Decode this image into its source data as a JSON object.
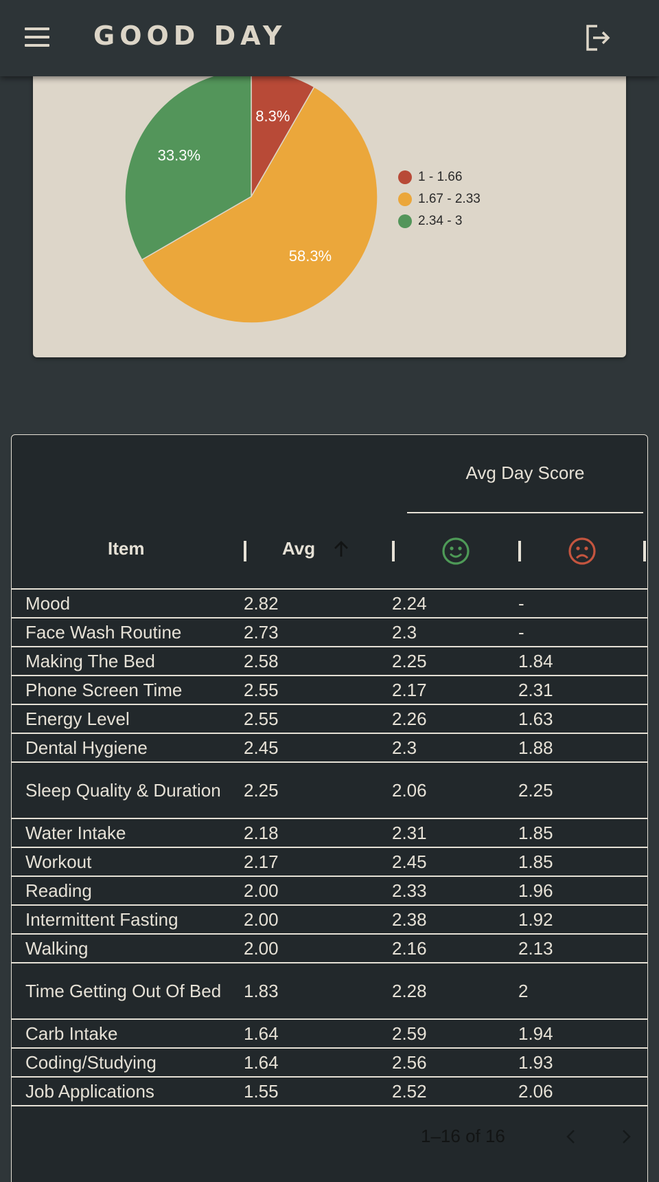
{
  "header": {
    "title": "GOOD DAY",
    "menu_icon": "menu-icon",
    "logout_icon": "logout-icon"
  },
  "chart_data": {
    "type": "pie",
    "slices": [
      {
        "label": "1 - 1.66",
        "value": 8.3,
        "display": "8.3%",
        "color": "#b84a37"
      },
      {
        "label": "1.67 - 2.33",
        "value": 58.3,
        "display": "58.3%",
        "color": "#eba73b"
      },
      {
        "label": "2.34 - 3",
        "value": 33.3,
        "display": "33.3%",
        "color": "#53955a"
      }
    ],
    "legend_position": "right"
  },
  "table": {
    "group_header": "Avg Day Score",
    "columns": {
      "item": "Item",
      "avg": "Avg",
      "good_icon": "smile-icon",
      "bad_icon": "frown-icon",
      "sort_icon": "arrow-up-icon"
    },
    "colors": {
      "good": "#4e9a57",
      "bad": "#c4553f"
    },
    "rows": [
      {
        "item": "Mood",
        "avg": "2.82",
        "good": "2.24",
        "bad": "-"
      },
      {
        "item": "Face Wash Routine",
        "avg": "2.73",
        "good": "2.3",
        "bad": "-"
      },
      {
        "item": "Making The Bed",
        "avg": "2.58",
        "good": "2.25",
        "bad": "1.84"
      },
      {
        "item": "Phone Screen Time",
        "avg": "2.55",
        "good": "2.17",
        "bad": "2.31"
      },
      {
        "item": "Energy Level",
        "avg": "2.55",
        "good": "2.26",
        "bad": "1.63"
      },
      {
        "item": "Dental Hygiene",
        "avg": "2.45",
        "good": "2.3",
        "bad": "1.88"
      },
      {
        "item": "Sleep Quality & Duration",
        "avg": "2.25",
        "good": "2.06",
        "bad": "2.25"
      },
      {
        "item": "Water Intake",
        "avg": "2.18",
        "good": "2.31",
        "bad": "1.85"
      },
      {
        "item": "Workout",
        "avg": "2.17",
        "good": "2.45",
        "bad": "1.85"
      },
      {
        "item": "Reading",
        "avg": "2.00",
        "good": "2.33",
        "bad": "1.96"
      },
      {
        "item": "Intermittent Fasting",
        "avg": "2.00",
        "good": "2.38",
        "bad": "1.92"
      },
      {
        "item": "Walking",
        "avg": "2.00",
        "good": "2.16",
        "bad": "2.13"
      },
      {
        "item": "Time Getting Out Of Bed",
        "avg": "1.83",
        "good": "2.28",
        "bad": "2"
      },
      {
        "item": "Carb Intake",
        "avg": "1.64",
        "good": "2.59",
        "bad": "1.94"
      },
      {
        "item": "Coding/Studying",
        "avg": "1.64",
        "good": "2.56",
        "bad": "1.93"
      },
      {
        "item": "Job Applications",
        "avg": "1.55",
        "good": "2.52",
        "bad": "2.06"
      }
    ],
    "pagination": {
      "range_text": "1–16 of 16",
      "prev_icon": "chevron-left-icon",
      "next_icon": "chevron-right-icon"
    }
  }
}
